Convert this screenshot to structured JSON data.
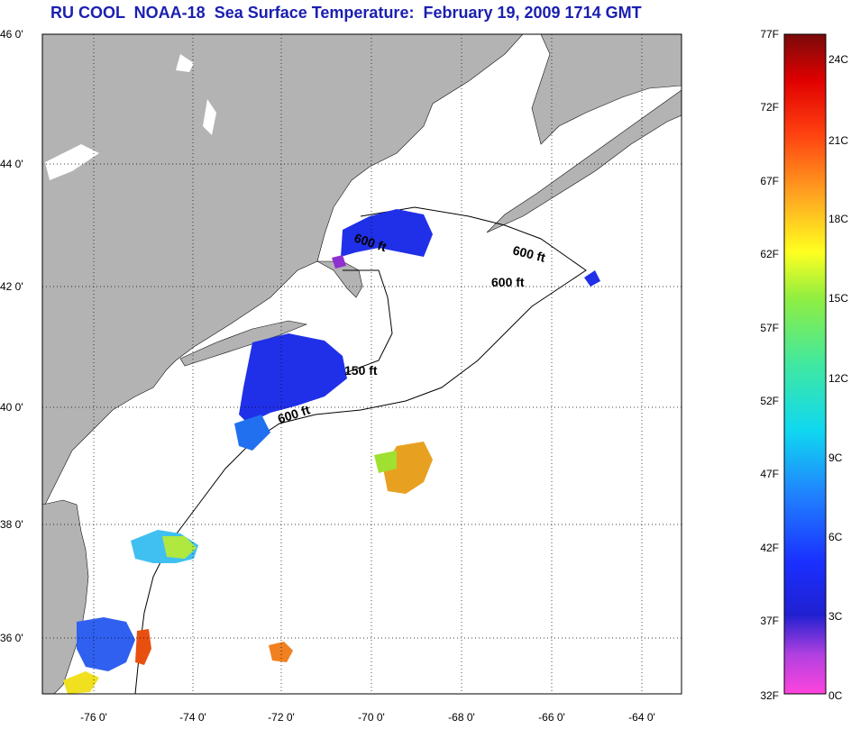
{
  "title": "RU COOL  NOAA-18  Sea Surface Temperature:  February 19, 2009 1714 GMT",
  "map": {
    "lat_labels": [
      "46 0'",
      "44 0'",
      "42 0'",
      "40 0'",
      "38 0'",
      "36 0'"
    ],
    "lon_labels": [
      "-76 0'",
      "-74 0'",
      "-72 0'",
      "-70 0'",
      "-68 0'",
      "-66 0'",
      "-64 0'"
    ],
    "contour_labels": [
      "600 ft",
      "600 ft",
      "600 ft",
      "150 ft",
      "600 ft"
    ],
    "colors": {
      "land": "#b3b3b3",
      "ocean": "#ffffff",
      "grid": "#000000"
    }
  },
  "colorbar": {
    "fahrenheit_labels": [
      "77F",
      "72F",
      "67F",
      "62F",
      "57F",
      "52F",
      "47F",
      "42F",
      "37F",
      "32F"
    ],
    "celsius_labels": [
      "24C",
      "21C",
      "18C",
      "15C",
      "12C",
      "9C",
      "6C",
      "3C",
      "0C"
    ]
  }
}
